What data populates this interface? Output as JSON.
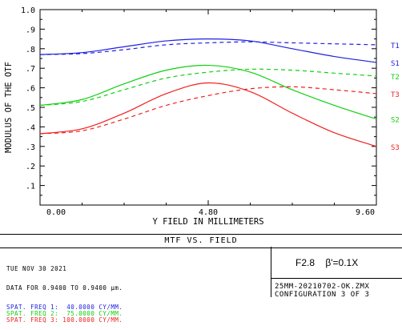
{
  "chart_data": {
    "type": "line",
    "xlabel": "Y FIELD IN MILLIMETERS",
    "ylabel": "MODULUS OF THE OTF",
    "xlim": [
      0,
      9.6
    ],
    "ylim": [
      0,
      1.0
    ],
    "x_ticks": [
      "0.00",
      "4.80",
      "9.60"
    ],
    "y_ticks": [
      "1.0",
      ".9",
      ".8",
      ".7",
      ".6",
      ".5",
      ".4",
      ".3",
      ".2",
      ".1"
    ],
    "grid": false,
    "legend": "right-side labels",
    "series": [
      {
        "name": "T1",
        "color": "#2020e0",
        "dash": true,
        "x": [
          0,
          1.2,
          2.4,
          3.6,
          4.8,
          6.0,
          7.2,
          8.4,
          9.6
        ],
        "y": [
          0.77,
          0.775,
          0.795,
          0.82,
          0.83,
          0.835,
          0.83,
          0.825,
          0.82
        ]
      },
      {
        "name": "S1",
        "color": "#2020e0",
        "dash": false,
        "x": [
          0,
          1.2,
          2.4,
          3.6,
          4.8,
          6.0,
          7.2,
          8.4,
          9.6
        ],
        "y": [
          0.77,
          0.78,
          0.81,
          0.84,
          0.85,
          0.84,
          0.8,
          0.76,
          0.73
        ]
      },
      {
        "name": "T2",
        "color": "#10d010",
        "dash": true,
        "x": [
          0,
          1.2,
          2.4,
          3.6,
          4.8,
          6.0,
          7.2,
          8.4,
          9.6
        ],
        "y": [
          0.51,
          0.53,
          0.59,
          0.65,
          0.68,
          0.695,
          0.69,
          0.675,
          0.66
        ]
      },
      {
        "name": "S2",
        "color": "#10d010",
        "dash": false,
        "x": [
          0,
          1.2,
          2.4,
          3.6,
          4.8,
          6.0,
          7.2,
          8.4,
          9.6
        ],
        "y": [
          0.51,
          0.54,
          0.62,
          0.69,
          0.715,
          0.68,
          0.59,
          0.51,
          0.44
        ]
      },
      {
        "name": "T3",
        "color": "#f02020",
        "dash": true,
        "x": [
          0,
          1.2,
          2.4,
          3.6,
          4.8,
          6.0,
          7.2,
          8.4,
          9.6
        ],
        "y": [
          0.365,
          0.38,
          0.44,
          0.51,
          0.56,
          0.595,
          0.605,
          0.59,
          0.57
        ]
      },
      {
        "name": "S3",
        "color": "#f02020",
        "dash": false,
        "x": [
          0,
          1.2,
          2.4,
          3.6,
          4.8,
          6.0,
          7.2,
          8.4,
          9.6
        ],
        "y": [
          0.365,
          0.39,
          0.47,
          0.57,
          0.625,
          0.58,
          0.47,
          0.37,
          0.3
        ]
      }
    ]
  },
  "footer": {
    "title": "MTF VS. FIELD",
    "date": "TUE NOV 30 2021",
    "data_line": "DATA FOR 0.9400 TO 0.9400 µm.",
    "freq_lines": [
      {
        "text": "SPAT. FREQ 1:  40.0000 CY/MM.",
        "color": "#2020e0"
      },
      {
        "text": "SPAT. FREQ 2:  75.0000 CY/MM.",
        "color": "#10d010"
      },
      {
        "text": "SPAT. FREQ 3: 100.0000 CY/MM.",
        "color": "#f02020"
      }
    ],
    "note": "F2.8    β'=0.1X",
    "file_line1": "25MM-20210702-OK.ZMX",
    "file_line2": "CONFIGURATION 3 OF 3"
  }
}
